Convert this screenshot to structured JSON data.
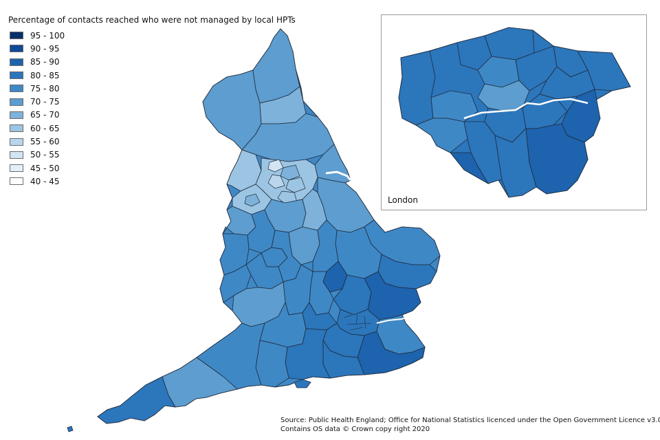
{
  "legend": {
    "title": "Percentage of contacts reached who were not managed by local HPTs",
    "items": [
      {
        "label": "95 - 100",
        "color": "#08306b"
      },
      {
        "label": "90 - 95",
        "color": "#0f4a95"
      },
      {
        "label": "85 - 90",
        "color": "#1d63ad"
      },
      {
        "label": "80 - 85",
        "color": "#2c76bb"
      },
      {
        "label": "75 - 80",
        "color": "#3f88c6"
      },
      {
        "label": "70 - 75",
        "color": "#5d9dcf"
      },
      {
        "label": "65 - 70",
        "color": "#7eb2da"
      },
      {
        "label": "60 - 65",
        "color": "#9cc5e3"
      },
      {
        "label": "55 - 60",
        "color": "#bbd6ec"
      },
      {
        "label": "50 - 55",
        "color": "#d3e4f3"
      },
      {
        "label": "45 - 50",
        "color": "#e6eff8"
      },
      {
        "label": "40 - 45",
        "color": "#ffffff"
      }
    ]
  },
  "inset": {
    "label": "London"
  },
  "source": {
    "line1": "Source: Public Health England; Office for National Statistics licenced under the Open Government Licence v3.0",
    "line2": "Contains OS data © Crown copy right 2020"
  },
  "colors": {
    "boundary": "#1f2a3a",
    "thames": "#ffffff"
  }
}
